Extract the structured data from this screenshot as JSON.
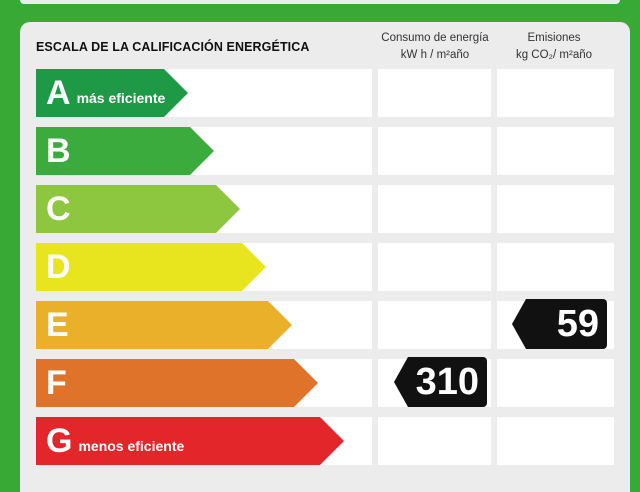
{
  "header": {
    "title": "ESCALA DE LA CALIFICACIÓN ENERGÉTICA",
    "col1_line1": "Consumo de energía",
    "col1_line2": "kW h / m²año",
    "col2_line1": "Emisiones",
    "col2_line2": "kg CO₂/ m²año"
  },
  "ratings": [
    {
      "letter": "A",
      "sub": "más eficiente",
      "color": "#1e9a47"
    },
    {
      "letter": "B",
      "sub": "",
      "color": "#3aab3c"
    },
    {
      "letter": "C",
      "sub": "",
      "color": "#8dc63f"
    },
    {
      "letter": "D",
      "sub": "",
      "color": "#e8e51f"
    },
    {
      "letter": "E",
      "sub": "",
      "color": "#eab02a"
    },
    {
      "letter": "F",
      "sub": "",
      "color": "#e0732a"
    },
    {
      "letter": "G",
      "sub": "menos eficiente",
      "color": "#e3262a"
    }
  ],
  "consumption": {
    "rating": "F",
    "value": "310"
  },
  "emissions": {
    "rating": "E",
    "value": "59"
  }
}
